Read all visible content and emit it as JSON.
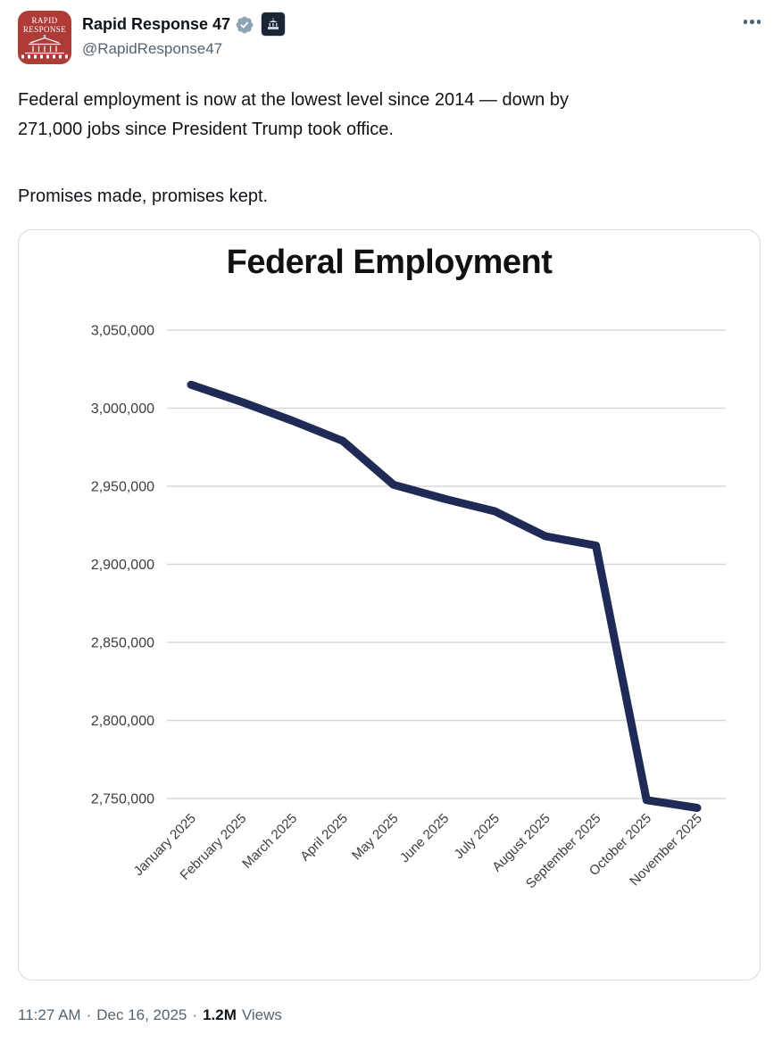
{
  "header": {
    "display_name": "Rapid Response 47",
    "handle": "@RapidResponse47",
    "avatar_line1": "RAPID",
    "avatar_line2": "RESPONSE",
    "verified_badge": "gray-government-checkmark-seal",
    "affiliation_badge": "white-house-building-icon"
  },
  "tweet": {
    "p1_line1": "Federal employment is now at the lowest level since 2014 — down by",
    "p1_line2": "271,000 jobs since President Trump took office.",
    "p2": "Promises made, promises kept."
  },
  "chart_data": {
    "type": "line",
    "title": "Federal Employment",
    "categories": [
      "January 2025",
      "February 2025",
      "March 2025",
      "April 2025",
      "May 2025",
      "June 2025",
      "July 2025",
      "August 2025",
      "September 2025",
      "October 2025",
      "November 2025"
    ],
    "series": [
      {
        "name": "Federal Employment",
        "values": [
          3015000,
          3004000,
          2992000,
          2979000,
          2951000,
          2942000,
          2934000,
          2918000,
          2912000,
          2749000,
          2744000
        ]
      }
    ],
    "yticks": [
      3050000,
      3000000,
      2950000,
      2900000,
      2850000,
      2800000,
      2750000
    ],
    "ylim": [
      2730000,
      3060000
    ],
    "xlabel": "",
    "ylabel": "",
    "grid": true,
    "legend": false,
    "line_color": "#1f2a56",
    "grid_color": "#d8d8d8",
    "tick_color": "#3d3d3d",
    "line_width": 9
  },
  "footer": {
    "time": "11:27 AM",
    "separator": "·",
    "date": "Dec 16, 2025",
    "views_count": "1.2M",
    "views_label": "Views"
  },
  "colors": {
    "accent_line": "#1f2a56",
    "avatar_red": "#ae3b36",
    "verified_gray": "#8ca3b2",
    "text_primary": "#0f1419",
    "text_secondary": "#536471",
    "card_border": "#d3dce2",
    "gridline": "#d8d8d8"
  }
}
